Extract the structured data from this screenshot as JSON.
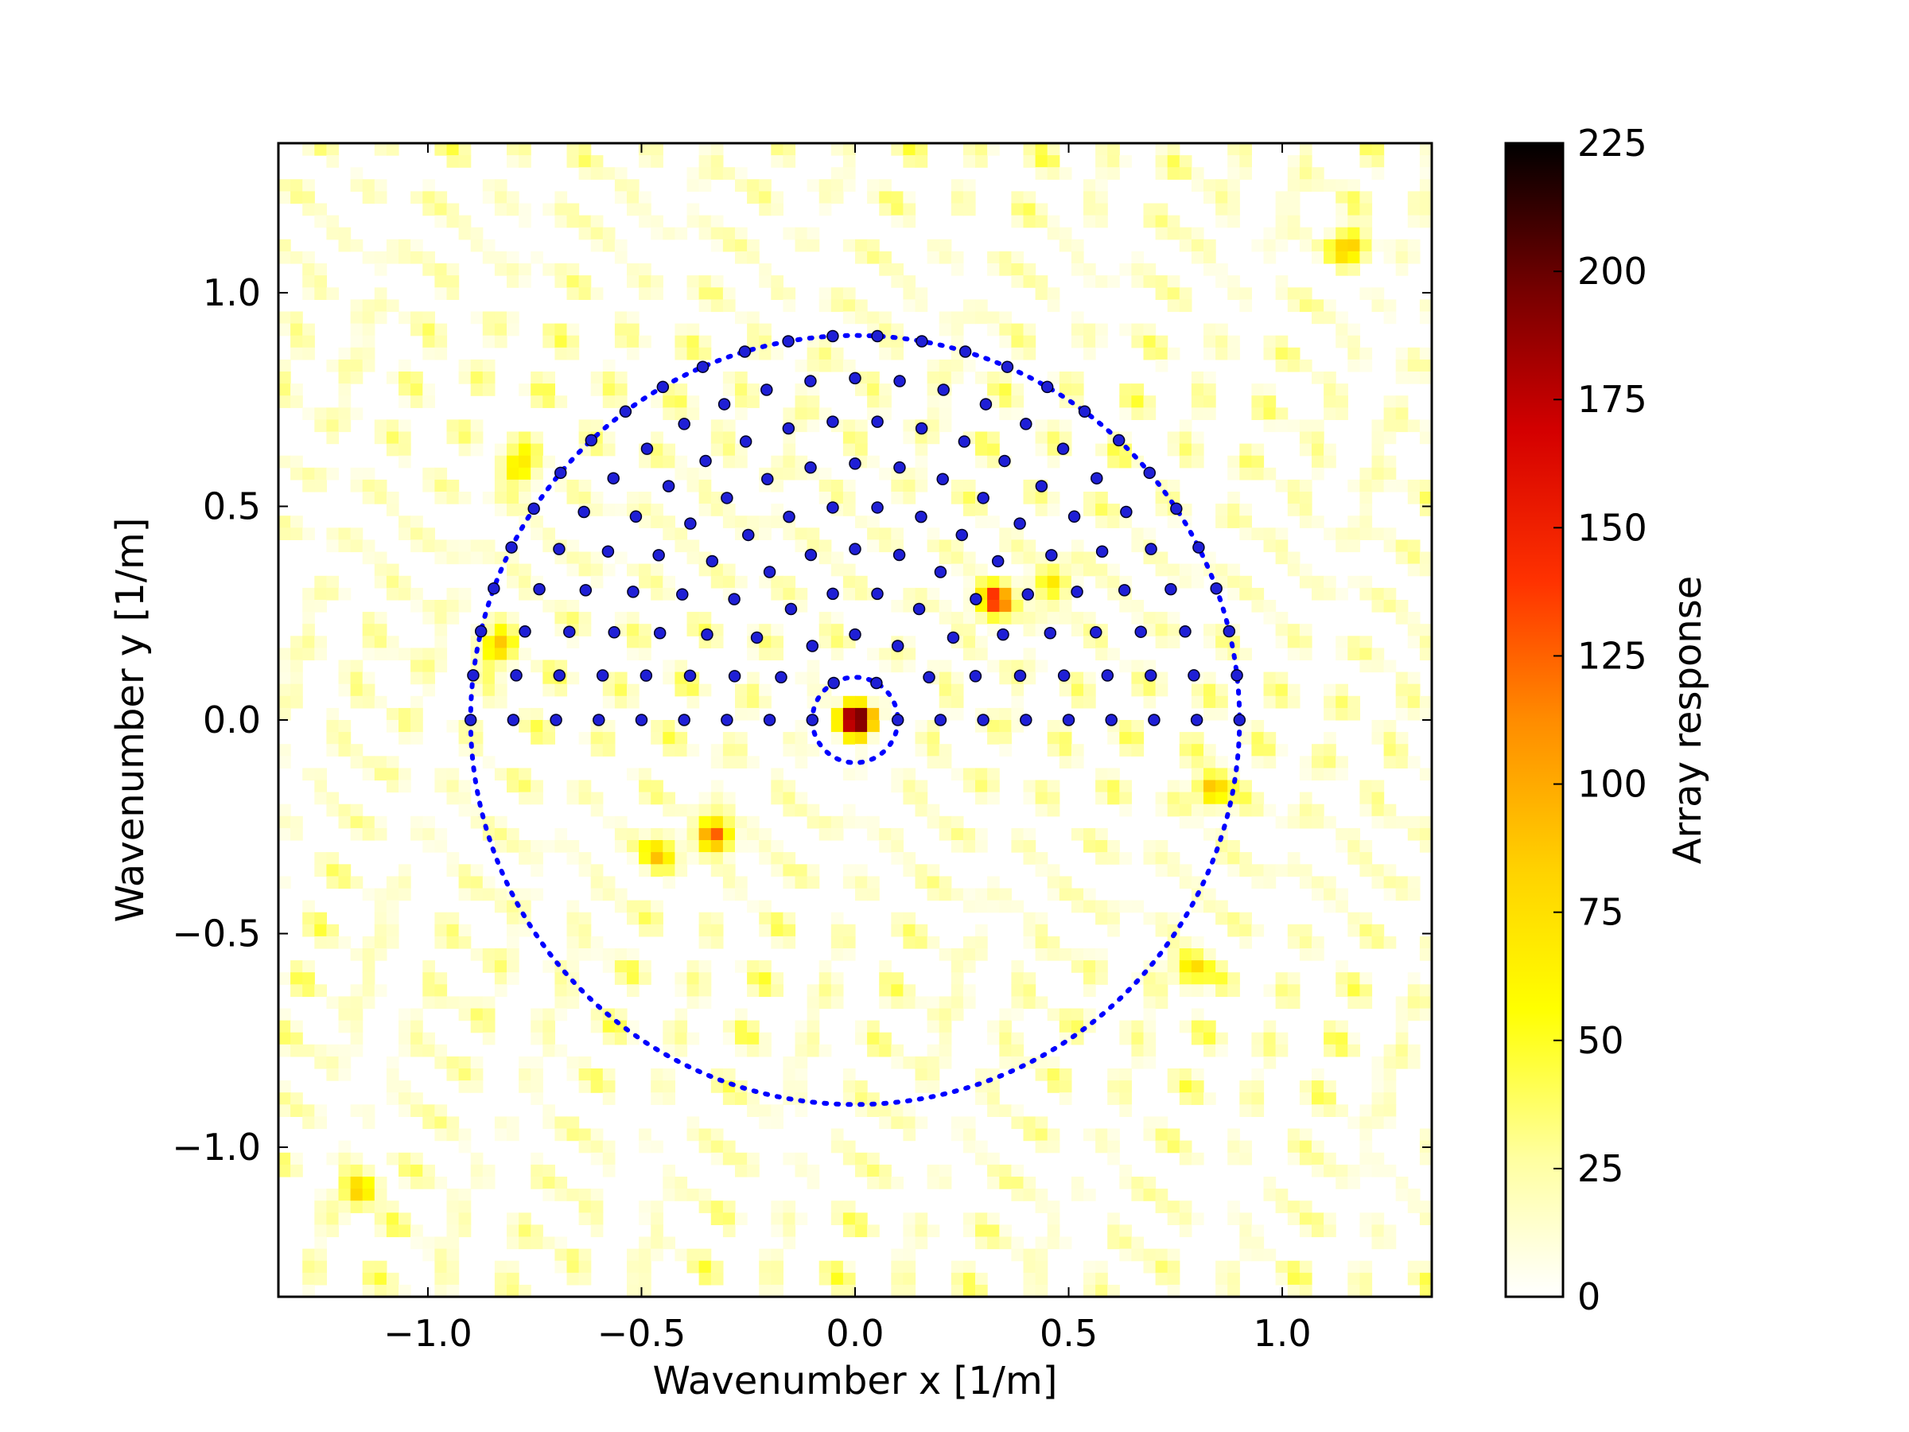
{
  "chart_data": {
    "type": "heatmap",
    "title": "",
    "xlabel": "Wavenumber x [1/m]",
    "ylabel": "Wavenumber y [1/m]",
    "xlim": [
      -1.35,
      1.35
    ],
    "ylim": [
      -1.35,
      1.35
    ],
    "x_ticks": [
      -1.0,
      -0.5,
      0.0,
      0.5,
      1.0
    ],
    "x_tick_labels": [
      "−1.0",
      "−0.5",
      "0.0",
      "0.5",
      "1.0"
    ],
    "y_ticks": [
      -1.0,
      -0.5,
      0.0,
      0.5,
      1.0
    ],
    "y_tick_labels": [
      "−1.0",
      "−0.5",
      "0.0",
      "0.5",
      "1.0"
    ],
    "grid": false,
    "colormap": "hot_r",
    "colorbar": {
      "label": "Array response",
      "range": [
        0,
        225
      ],
      "ticks": [
        0,
        25,
        50,
        75,
        100,
        125,
        150,
        175,
        200,
        225
      ],
      "tick_labels": [
        "0",
        "25",
        "50",
        "75",
        "100",
        "125",
        "150",
        "175",
        "200",
        "225"
      ]
    },
    "peaks": [
      {
        "x": 0.0,
        "y": 0.0,
        "value": 225
      },
      {
        "x": 0.33,
        "y": 0.28,
        "value": 140
      },
      {
        "x": -0.33,
        "y": -0.27,
        "value": 130
      },
      {
        "x": 0.84,
        "y": -0.16,
        "value": 95
      },
      {
        "x": -0.84,
        "y": 0.17,
        "value": 80
      },
      {
        "x": -1.16,
        "y": -1.1,
        "value": 90
      },
      {
        "x": 1.16,
        "y": 1.11,
        "value": 85
      },
      {
        "x": 0.79,
        "y": -0.58,
        "value": 75
      },
      {
        "x": -0.79,
        "y": 0.59,
        "value": 75
      },
      {
        "x": -0.46,
        "y": -0.31,
        "value": 70
      },
      {
        "x": 0.46,
        "y": 0.32,
        "value": 70
      }
    ],
    "circles": [
      {
        "center": [
          0.0,
          0.0
        ],
        "radius": 0.9,
        "style": "dotted",
        "color": "#0000ff"
      },
      {
        "center": [
          0.0,
          0.0
        ],
        "radius": 0.1,
        "style": "dotted",
        "color": "#0000ff"
      }
    ],
    "grid_points": {
      "color": "#1f1fd6",
      "radii": [
        0.1,
        0.2,
        0.3,
        0.4,
        0.5,
        0.6,
        0.7,
        0.8,
        0.9
      ],
      "angle_range_deg": [
        0,
        180
      ],
      "description": "semicircular sampling grid of wavenumbers"
    }
  },
  "colors": {
    "heat_low": "#ffffff",
    "heat_mid": "#ffff00",
    "heat_orange": "#ff8800",
    "heat_red": "#ff0000",
    "heat_high": "#000000",
    "circle": "#0000ff",
    "points": "#2020d0"
  }
}
